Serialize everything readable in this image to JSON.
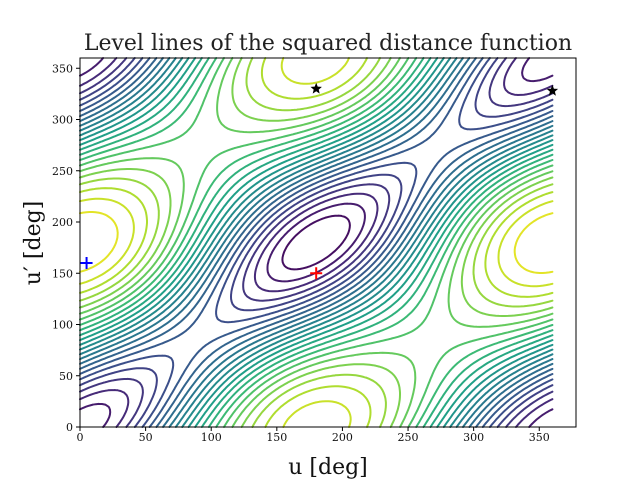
{
  "chart_data": {
    "type": "contour",
    "title": "Level lines of the squared distance function",
    "xlabel": "u [deg]",
    "ylabel": "u′ [deg]",
    "xlim": [
      0,
      378
    ],
    "ylim": [
      0,
      360
    ],
    "xticks": [
      0,
      50,
      100,
      150,
      200,
      250,
      300,
      350
    ],
    "yticks": [
      0,
      50,
      100,
      150,
      200,
      250,
      300,
      350
    ],
    "grid": false,
    "legend": "none",
    "colormap": "viridis",
    "field": {
      "description": "squared distance, periodic in u and u′",
      "domain_u": [
        0,
        360
      ],
      "domain_v": [
        0,
        360
      ],
      "levels": 24
    },
    "markers": [
      {
        "label": "maximum",
        "symbol": "plus",
        "color": "#ff0000",
        "u": 180,
        "v": 150
      },
      {
        "label": "minimum",
        "symbol": "plus",
        "color": "#0000ff",
        "u": 5,
        "v": 160
      },
      {
        "label": "saddle",
        "symbol": "star",
        "color": "#000000",
        "u": 180,
        "v": 330
      },
      {
        "label": "saddle",
        "symbol": "star",
        "color": "#000000",
        "u": 360,
        "v": 328
      }
    ]
  }
}
